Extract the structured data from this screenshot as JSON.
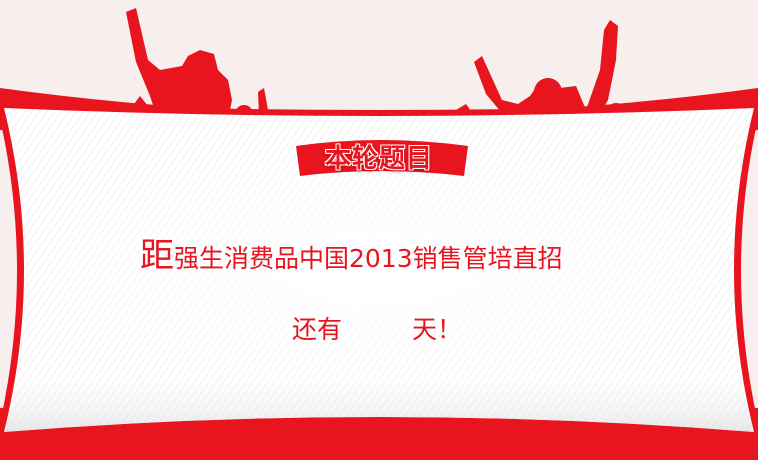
{
  "banner": {
    "title": "本轮题目",
    "headline_first_char": "距",
    "headline_rest": "强生消费品中国2013销售管培直招",
    "countdown_prefix": "还有",
    "countdown_suffix": "天！"
  },
  "colors": {
    "accent": "#e8141e",
    "background": "#f7eeee",
    "card": "#ffffff"
  }
}
